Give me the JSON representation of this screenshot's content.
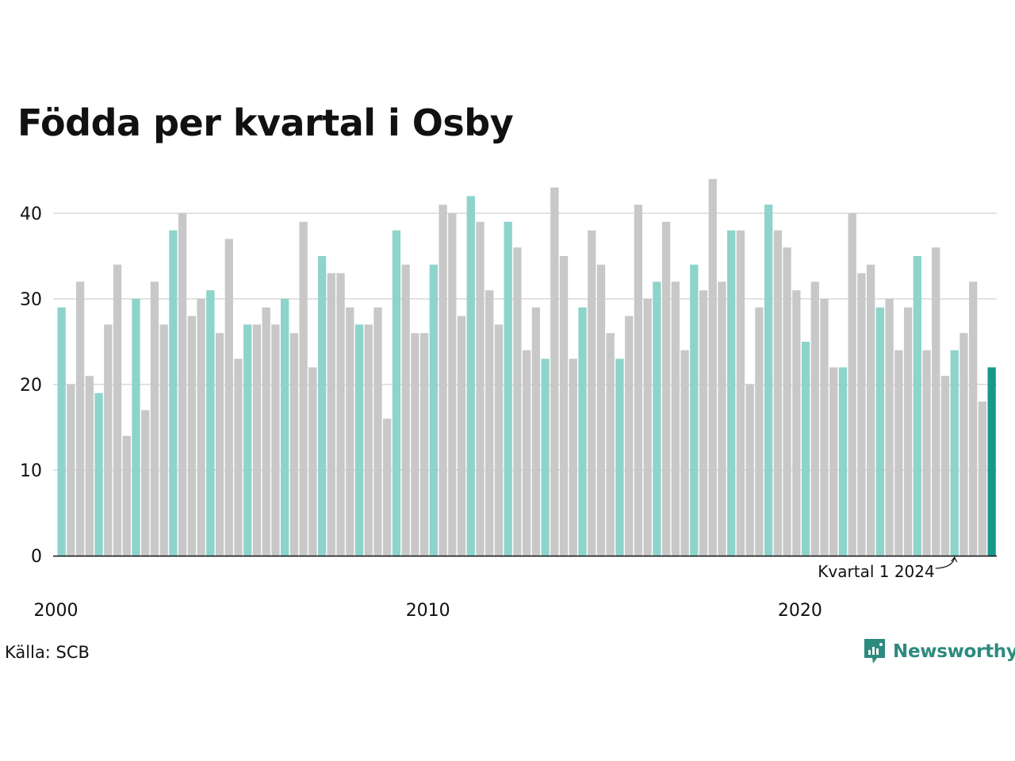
{
  "title": "Födda per kvartal i Osby",
  "source": "Källa: SCB",
  "brand": "Newsworthy",
  "annotation": "Kvartal 1 2024",
  "colors": {
    "q1": "#8dd4cb",
    "other": "#c8c8c8",
    "latest": "#16998a",
    "axis": "#111111",
    "grid": "#e2e2e2"
  },
  "chart_data": {
    "type": "bar",
    "x_start": "2000 Q1",
    "x_end": "2025 Q1",
    "x_ticks": [
      "2000",
      "2010",
      "2020"
    ],
    "y_ticks": [
      "0",
      "10",
      "20",
      "30",
      "40"
    ],
    "ylim": [
      0,
      45
    ],
    "grid": true,
    "highlight": "Quarter 1 of each year in teal; latest quarter in dark teal",
    "values": [
      29,
      20,
      32,
      21,
      19,
      27,
      34,
      14,
      30,
      17,
      32,
      27,
      38,
      40,
      28,
      30,
      31,
      26,
      37,
      23,
      27,
      27,
      29,
      27,
      30,
      26,
      39,
      22,
      35,
      33,
      33,
      29,
      27,
      27,
      29,
      16,
      38,
      34,
      26,
      26,
      34,
      41,
      40,
      28,
      42,
      39,
      31,
      27,
      39,
      36,
      24,
      29,
      23,
      43,
      35,
      23,
      29,
      38,
      34,
      26,
      23,
      28,
      41,
      30,
      32,
      39,
      32,
      24,
      34,
      31,
      44,
      32,
      38,
      38,
      20,
      29,
      41,
      38,
      36,
      31,
      25,
      32,
      30,
      22,
      22,
      40,
      33,
      34,
      29,
      30,
      24,
      29,
      35,
      24,
      36,
      21,
      24,
      26,
      32,
      18,
      22
    ]
  }
}
